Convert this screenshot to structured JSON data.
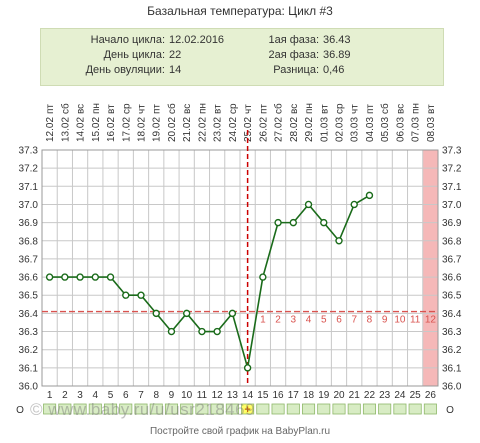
{
  "title": "Базальная температура: Цикл #3",
  "summary": {
    "cycle_start_label": "Начало цикла:",
    "cycle_start": "12.02.2016",
    "cycle_day_label": "День цикла:",
    "cycle_day": "22",
    "ovulation_label": "День овуляции:",
    "ovulation": "14",
    "phase1_label": "1ая фаза:",
    "phase1": "36.43",
    "phase2_label": "2ая фаза:",
    "phase2": "36.89",
    "diff_label": "Разница:",
    "diff": "0,46"
  },
  "footer": "Постройте свой график на BabyPlan.ru",
  "watermark": "© www.baby.ru/u/usr218469",
  "colors": {
    "series": "#1a6b1a",
    "marker_fill": "#ffffff",
    "coverline": "#d9534f",
    "ovulation": "#cc0000",
    "grid": "#c8c8c8",
    "highlight": "#f5b8b8",
    "cell_green": "#d8ecc4",
    "cell_yellow": "#ffff66"
  },
  "chart_data": {
    "type": "line",
    "ylim": [
      36.0,
      37.3
    ],
    "yticks": [
      "37.3",
      "37.2",
      "37.1",
      "37.0",
      "36.9",
      "36.8",
      "36.7",
      "36.6",
      "36.5",
      "36.4",
      "36.3",
      "36.2",
      "36.1",
      "36.0"
    ],
    "day_weekdays": [
      "пт",
      "сб",
      "вс",
      "пн",
      "вт",
      "ср",
      "чт",
      "пт",
      "сб",
      "вс",
      "пн",
      "вт",
      "ср",
      "чт",
      "пт",
      "сб",
      "вс",
      "пн",
      "вт",
      "ср",
      "чт",
      "пт",
      "сб",
      "вс",
      "пн",
      "вт"
    ],
    "day_dates": [
      "12.02",
      "13.02",
      "14.02",
      "15.02",
      "16.02",
      "17.02",
      "18.02",
      "19.02",
      "20.02",
      "21.02",
      "22.02",
      "23.02",
      "24.02",
      "25.02",
      "26.02",
      "27.02",
      "28.02",
      "29.02",
      "01.03",
      "02.03",
      "03.03",
      "04.03",
      "05.03",
      "06.03",
      "07.03",
      "08.03"
    ],
    "days": [
      "1",
      "2",
      "3",
      "4",
      "5",
      "6",
      "7",
      "8",
      "9",
      "10",
      "11",
      "12",
      "13",
      "14",
      "15",
      "16",
      "17",
      "18",
      "19",
      "20",
      "21",
      "22",
      "23",
      "24",
      "25",
      "26"
    ],
    "series": [
      {
        "values": [
          36.6,
          36.6,
          36.6,
          36.6,
          36.6,
          36.5,
          36.5,
          36.4,
          36.3,
          36.4,
          36.3,
          36.3,
          36.4,
          36.1,
          36.6,
          36.9,
          36.9,
          37.0,
          36.9,
          36.8,
          37.0,
          37.05
        ]
      }
    ],
    "coverline": 36.41,
    "ovulation_day": 14,
    "highlight_day": 26,
    "luteal_labels": [
      "1",
      "2",
      "3",
      "4",
      "5",
      "6",
      "7",
      "8",
      "9",
      "10",
      "11",
      "12"
    ],
    "bottom_marker": "+",
    "bottom_left": "O",
    "bottom_right": "O"
  }
}
